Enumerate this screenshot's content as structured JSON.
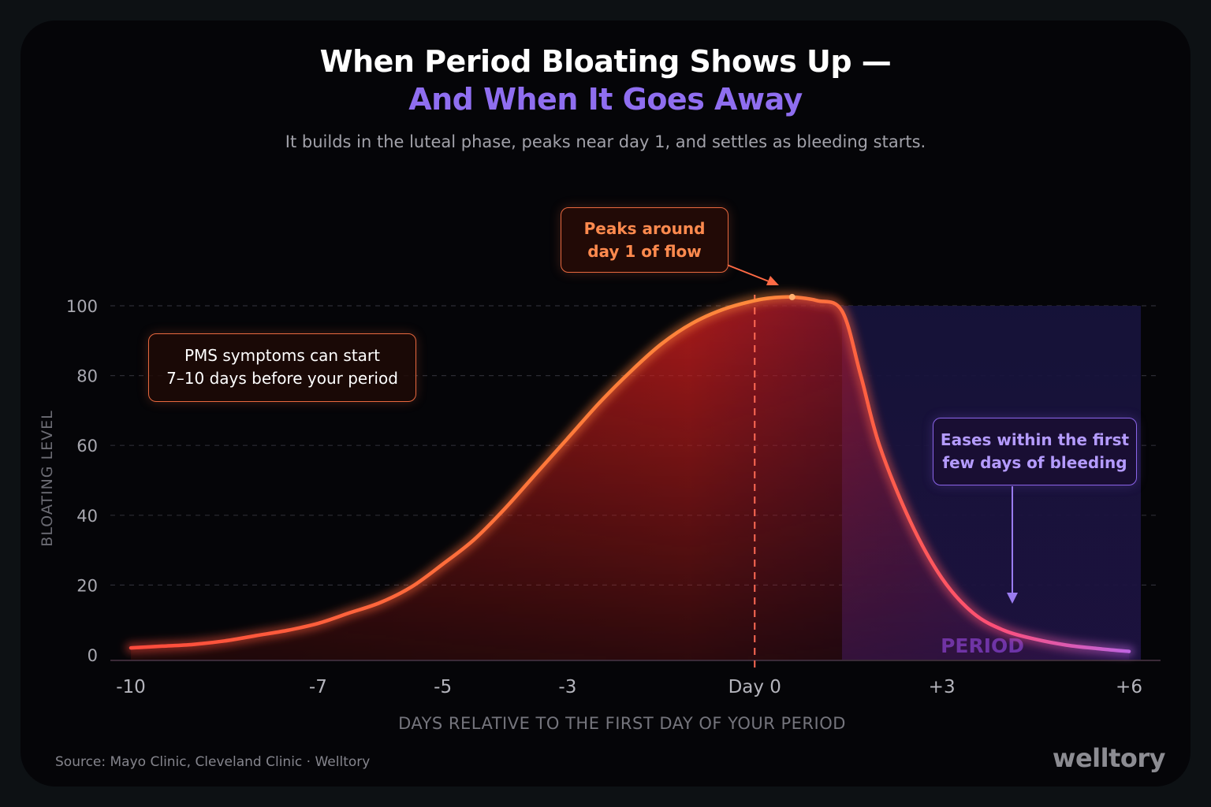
{
  "header": {
    "title_line1": "When Period Bloating Shows Up —",
    "title_line2": "And When It Goes Away",
    "subtitle": "It builds in the luteal phase, peaks near day 1, and settles as bleeding starts."
  },
  "callouts": {
    "pms": {
      "line1": "PMS symptoms can start",
      "line2": "7–10 days before your period"
    },
    "peak": {
      "line1": "Peaks around",
      "line2": "day 1 of flow"
    },
    "ease": {
      "line1": "Eases within the first",
      "line2": "few days of bleeding"
    }
  },
  "footer": {
    "source": "Source: Mayo Clinic, Cleveland Clinic  ·  Welltory",
    "brand": "welltory"
  },
  "chart_data": {
    "type": "area",
    "title": "When Period Bloating Shows Up — And When It Goes Away",
    "subtitle": "It builds in the luteal phase, peaks near day 1, and settles as bleeding starts.",
    "xlabel": "DAYS RELATIVE TO THE FIRST DAY OF YOUR PERIOD",
    "ylabel": "BLOATING LEVEL",
    "xlim": [
      -10,
      6
    ],
    "ylim": [
      0,
      100
    ],
    "x_ticks": [
      -10,
      -7,
      -5,
      -3,
      0,
      3,
      6
    ],
    "x_tick_labels": [
      "-10",
      "-7",
      "-5",
      "-3",
      "Day 0",
      "+3",
      "+6"
    ],
    "y_ticks": [
      0,
      20,
      40,
      60,
      80,
      100
    ],
    "y_tick_labels": [
      "0",
      "20",
      "40",
      "60",
      "80",
      "100"
    ],
    "grid": "horizontal dashed",
    "shaded_region": {
      "label": "PERIOD",
      "x_start": 1.4,
      "x_end": 6
    },
    "reference_line_x": 0,
    "series": [
      {
        "x": [
          -10,
          -9.5,
          -9,
          -8.5,
          -8,
          -7.5,
          -7,
          -6.5,
          -6,
          -5.5,
          -5,
          -4.5,
          -4,
          -3.5,
          -3,
          -2.5,
          -2,
          -1.5,
          -1,
          -0.5,
          0,
          0.3,
          0.6,
          1.0,
          1.4,
          1.7,
          2.0,
          2.5,
          3.0,
          3.5,
          4.0,
          4.5,
          5.0,
          5.5,
          6.0
        ],
        "values": [
          2,
          2.5,
          3,
          4,
          5.5,
          7,
          9,
          12,
          15,
          19.5,
          26,
          33,
          42,
          52,
          62,
          72,
          81,
          89,
          95,
          99,
          101.5,
          102.3,
          102.5,
          101.5,
          98.5,
          80,
          60,
          38,
          22,
          12,
          7,
          4.5,
          2.8,
          1.8,
          1
        ]
      }
    ],
    "colors": {
      "curve_start": "#ff4a3d",
      "curve_peak": "#ff8a3c",
      "curve_end": "#b567f0",
      "period_band": "#14123a",
      "accent_purple": "#8f6ef0",
      "accent_orange": "#e8683e"
    }
  }
}
